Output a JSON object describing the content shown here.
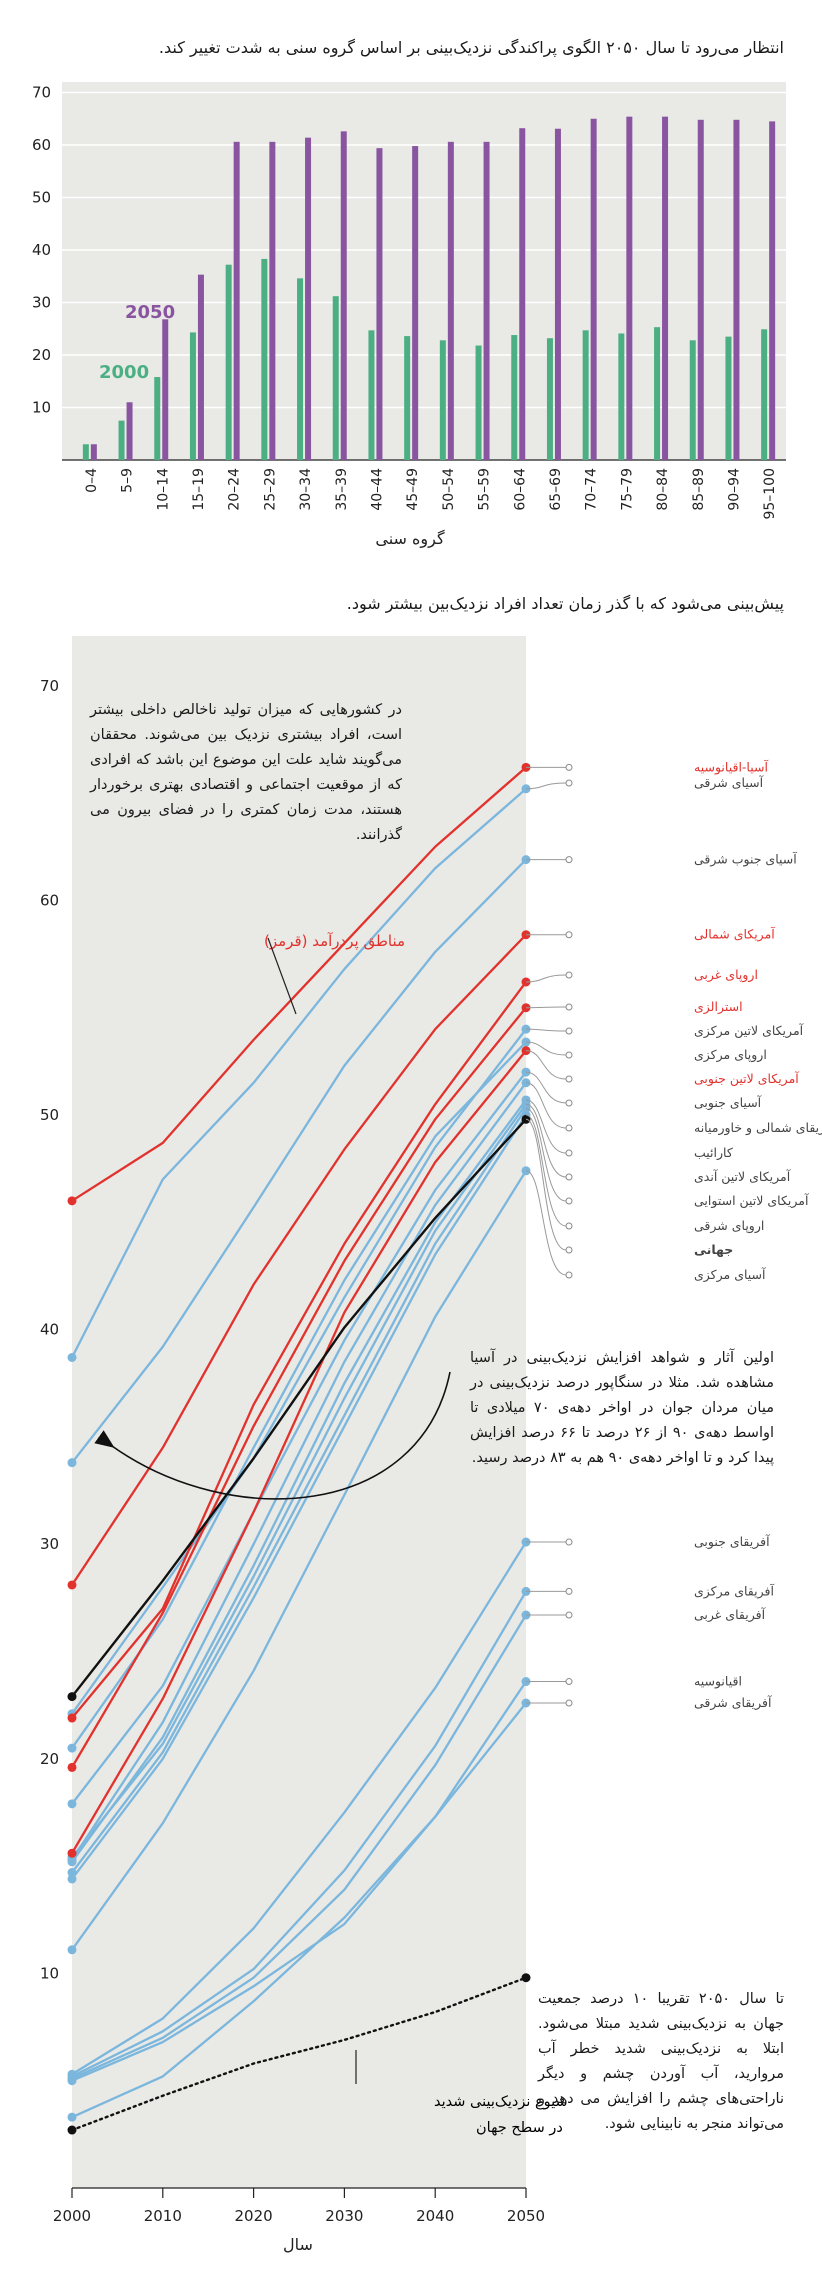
{
  "chart_data": [
    {
      "type": "bar",
      "title": "انتظار می‌رود تا سال ۲۰۵۰ الگوی پراکندگی نزدیک‌بینی بر اساس گروه سنی به شدت تغییر کند.",
      "xlabel": "گروه سنی",
      "ylabel": "",
      "ylim": [
        0,
        72
      ],
      "yticks": [
        10,
        20,
        30,
        40,
        50,
        60,
        70
      ],
      "categories": [
        "0–4",
        "5–9",
        "10–14",
        "15–19",
        "20–24",
        "25–29",
        "30–34",
        "35–39",
        "40–44",
        "45–49",
        "50–54",
        "55–59",
        "60–64",
        "65–69",
        "70–74",
        "75–79",
        "80–84",
        "85–89",
        "90–94",
        "95–100"
      ],
      "series": [
        {
          "name": "2000",
          "color": "#4caf84",
          "values": [
            3,
            7.5,
            15.8,
            24.3,
            37.2,
            38.3,
            34.6,
            31.2,
            24.7,
            23.6,
            22.8,
            21.8,
            23.8,
            23.2,
            24.7,
            24.1,
            25.3,
            22.8,
            23.5,
            24.9
          ]
        },
        {
          "name": "2050",
          "color": "#8a55a0",
          "values": [
            3,
            11,
            26.8,
            35.3,
            60.6,
            60.6,
            61.4,
            62.6,
            59.4,
            59.8,
            60.6,
            60.6,
            63.2,
            63.1,
            65,
            65.4,
            65.4,
            64.8,
            64.8,
            64.5
          ]
        }
      ]
    },
    {
      "type": "line",
      "title": "پیش‌بینی می‌شود که با گذر زمان تعداد افراد نزدیک‌بین بیشتر شود.",
      "xlabel": "سال",
      "ylabel": "",
      "x": [
        2000,
        2010,
        2020,
        2030,
        2040,
        2050
      ],
      "xlim": [
        2000,
        2050
      ],
      "ylim": [
        0,
        72
      ],
      "yticks": [
        10,
        20,
        30,
        40,
        50,
        60,
        70
      ],
      "series": [
        {
          "name": "آسیا-اقیانوسیه",
          "group": "high",
          "values": [
            46,
            48.7,
            53.5,
            58,
            62.5,
            66.2
          ]
        },
        {
          "name": "آسیای شرقی",
          "group": "other",
          "values": [
            38.7,
            47,
            51.5,
            56.8,
            61.5,
            65.2
          ]
        },
        {
          "name": "آسیای جنوب شرقی",
          "group": "other",
          "values": [
            33.8,
            39.2,
            45.7,
            52.3,
            57.6,
            61.9
          ]
        },
        {
          "name": "آمریکای شمالی",
          "group": "high",
          "values": [
            28.1,
            34.5,
            42.1,
            48.4,
            54,
            58.4
          ]
        },
        {
          "name": "اروپای غربی",
          "group": "high",
          "values": [
            21.9,
            27,
            36.5,
            44,
            50.5,
            56.2
          ]
        },
        {
          "name": "استرالزی",
          "group": "high",
          "values": [
            19.6,
            26.8,
            35.5,
            43.2,
            49.8,
            55
          ]
        },
        {
          "name": "آمریکای لاتین مرکزی",
          "group": "other",
          "values": [
            22.1,
            28,
            34,
            41.5,
            48.5,
            54
          ]
        },
        {
          "name": "اروپای مرکزی",
          "group": "other",
          "values": [
            20.5,
            26.5,
            34.5,
            42.3,
            49,
            53.4
          ]
        },
        {
          "name": "آمریکای لاتین جنوبی",
          "group": "high",
          "values": [
            15.6,
            22.8,
            31.5,
            40.8,
            47.8,
            53
          ]
        },
        {
          "name": "آسیای جنوبی",
          "group": "other",
          "values": [
            17.9,
            23.4,
            31.5,
            39.5,
            46.5,
            52
          ]
        },
        {
          "name": "آفریقای شمالی و خاورمیانه",
          "group": "other",
          "values": [
            15.3,
            21.7,
            30,
            38.5,
            45.8,
            51.5
          ]
        },
        {
          "name": "کارائیب",
          "group": "other",
          "values": [
            15.2,
            21,
            29,
            37.5,
            45,
            50.7
          ]
        },
        {
          "name": "آمریکای لاتین آندی",
          "group": "other",
          "values": [
            15.4,
            20.7,
            28.5,
            36.8,
            44.6,
            50.5
          ]
        },
        {
          "name": "آمریکای لاتین استوایی",
          "group": "other",
          "values": [
            14.7,
            20.3,
            28,
            36,
            44,
            50.3
          ]
        },
        {
          "name": "اروپای شرقی",
          "group": "other",
          "values": [
            14.4,
            20,
            27.5,
            35.5,
            43.5,
            50
          ]
        },
        {
          "name": "جهانی",
          "group": "world",
          "values": [
            22.9,
            28.3,
            34,
            40.1,
            45.2,
            49.8
          ]
        },
        {
          "name": "آسیای مرکزی",
          "group": "other",
          "values": [
            11.1,
            17,
            24.1,
            32.3,
            40.6,
            47.4
          ]
        },
        {
          "name": "آفریقای جنوبی",
          "group": "other",
          "values": [
            5.3,
            7.9,
            12.1,
            17.5,
            23.3,
            30.1
          ]
        },
        {
          "name": "آفریقای مرکزی",
          "group": "other",
          "values": [
            5.2,
            7.3,
            10.2,
            14.8,
            20.6,
            27.8
          ]
        },
        {
          "name": "آفریقای غربی",
          "group": "other",
          "values": [
            5.1,
            7,
            9.8,
            13.9,
            19.7,
            26.7
          ]
        },
        {
          "name": "اقیانوسیه",
          "group": "other",
          "values": [
            5,
            6.8,
            9.4,
            12.3,
            17.3,
            23.6
          ]
        },
        {
          "name": "آفریقای شرقی",
          "group": "other",
          "values": [
            3.3,
            5.2,
            8.7,
            12.6,
            17.3,
            22.6
          ]
        },
        {
          "name": "شیوع نزدیک‌بینی شدید در سطح جهان",
          "group": "severe",
          "values": [
            2.7,
            4.3,
            5.8,
            6.9,
            8.2,
            9.8
          ]
        }
      ]
    }
  ],
  "colors": {
    "high": "#e2322d",
    "other": "#7bb6dd",
    "world": "#111111",
    "bar2000": "#4caf84",
    "bar2050": "#8a55a0",
    "label": "#666666"
  },
  "annotations": {
    "high_income_note": "در کشورهایی که میزان تولید ناخالص داخلی بیشتر است، افراد بیشتری نزدیک بین می‌شوند. محققان می‌گویند شاید علت این موضوع این باشد که افرادی که از موقعیت اجتماعی و اقتصادی بهتری برخوردار هستند، مدت زمان کمتری را در فضای بیرون می گذرانند.",
    "high_income_label": "مناطق پردرآمد (قرمز)",
    "asia_note": "اولین آثار و شواهد افزایش نزدیک‌بینی در آسیا مشاهده شد. مثلا در سنگاپور درصد نزدیک‌بینی در میان مردان جوان در اواخر دهه‌ی ۷۰ میلادی تا اواسط دهه‌ی ۹۰ از ۲۶ درصد تا ۶۶ درصد افزایش پیدا کرد و تا اواخر دهه‌ی ۹۰ هم به ۸۳ درصد رسید.",
    "severe_label": "شیوع نزدیک‌بینی شدید در سطح جهان",
    "severe_note": "تا سال ۲۰۵۰ تقریبا ۱۰ درصد جمعیت جهان به نزدیک‌بینی شدید مبتلا می‌شود. ابتلا به نزدیک‌بینی شدید خطر آب مروارید، آب آوردن چشم و دیگر ناراحتی‌های چشم را افزایش می دهد و می‌تواند منجر به نابینایی شود."
  }
}
